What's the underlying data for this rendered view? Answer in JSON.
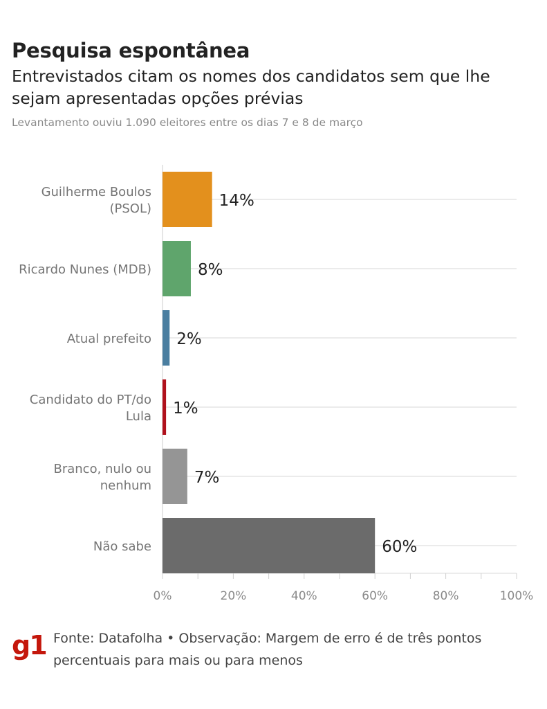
{
  "header": {
    "title": "Pesquisa espontânea",
    "subtitle": "Entrevistados citam os nomes dos candidatos sem que lhe sejam apresentadas opções prévias",
    "note": "Levantamento ouviu 1.090 eleitores entre os dias 7 e 8 de março"
  },
  "footer": {
    "logo": "g1",
    "source": "Fonte: Datafolha • Observação: Margem de erro é de três pontos percentuais para mais ou para menos"
  },
  "chart_data": {
    "type": "bar",
    "orientation": "horizontal",
    "categories": [
      [
        "Guilherme Boulos",
        "(PSOL)"
      ],
      [
        "Ricardo Nunes (MDB)"
      ],
      [
        "Atual prefeito"
      ],
      [
        "Candidato do PT/do",
        "Lula"
      ],
      [
        "Branco, nulo ou",
        "nenhum"
      ],
      [
        "Não sabe"
      ]
    ],
    "values": [
      14,
      8,
      2,
      1,
      7,
      60
    ],
    "value_labels": [
      "14%",
      "8%",
      "2%",
      "1%",
      "7%",
      "60%"
    ],
    "colors": [
      "#e3901d",
      "#5fa56c",
      "#4a7ea0",
      "#b0111c",
      "#959595",
      "#6b6b6b"
    ],
    "xlim": [
      0,
      100
    ],
    "xticks": [
      0,
      20,
      40,
      60,
      80,
      100
    ],
    "xtick_labels": [
      "0%",
      "20%",
      "40%",
      "60%",
      "80%",
      "100%"
    ],
    "grid": true
  }
}
